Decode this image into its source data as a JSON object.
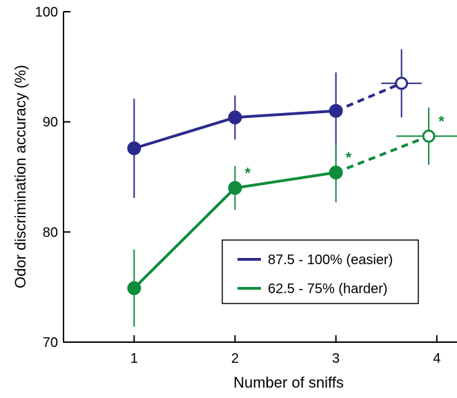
{
  "chart_data": {
    "type": "line",
    "xlabel": "Number of sniffs",
    "ylabel": "Odor discrimination accuracy (%)",
    "xlim": [
      0.3,
      4.2
    ],
    "ylim": [
      70,
      100
    ],
    "xticks": [
      1,
      2,
      3,
      4
    ],
    "xtick_labels": [
      "1",
      "2",
      "3",
      "4"
    ],
    "yticks": [
      70,
      80,
      90,
      100
    ],
    "ytick_labels": [
      "70",
      "80",
      "90",
      "100"
    ],
    "grid": false,
    "legend_position": "bottom-right",
    "significance_marker": "*",
    "series": [
      {
        "name": "87.5 - 100% (easier)",
        "color": "#2a2a8c",
        "points": [
          {
            "x": 1,
            "y": 87.6,
            "y_err_low": 83.1,
            "y_err_high": 92.1
          },
          {
            "x": 2,
            "y": 90.4,
            "y_err_low": 88.4,
            "y_err_high": 92.4
          },
          {
            "x": 3,
            "y": 91.0,
            "y_err_low": 86.5,
            "y_err_high": 94.5
          }
        ],
        "extrapolated": {
          "x": 3.65,
          "y": 93.5,
          "x_err_low": 3.45,
          "x_err_high": 3.85,
          "y_err_low": 90.4,
          "y_err_high": 96.6
        },
        "significant_x": []
      },
      {
        "name": "62.5 - 75% (harder)",
        "color": "#0f8c3c",
        "points": [
          {
            "x": 1,
            "y": 74.9,
            "y_err_low": 71.4,
            "y_err_high": 78.4
          },
          {
            "x": 2,
            "y": 84.0,
            "y_err_low": 82.0,
            "y_err_high": 86.0
          },
          {
            "x": 3,
            "y": 85.4,
            "y_err_low": 82.7,
            "y_err_high": 88.1
          }
        ],
        "extrapolated": {
          "x": 3.92,
          "y": 88.7,
          "x_err_low": 3.6,
          "x_err_high": 4.2,
          "y_err_low": 86.1,
          "y_err_high": 91.3
        },
        "significant_x": [
          2,
          3,
          3.92
        ]
      }
    ]
  }
}
